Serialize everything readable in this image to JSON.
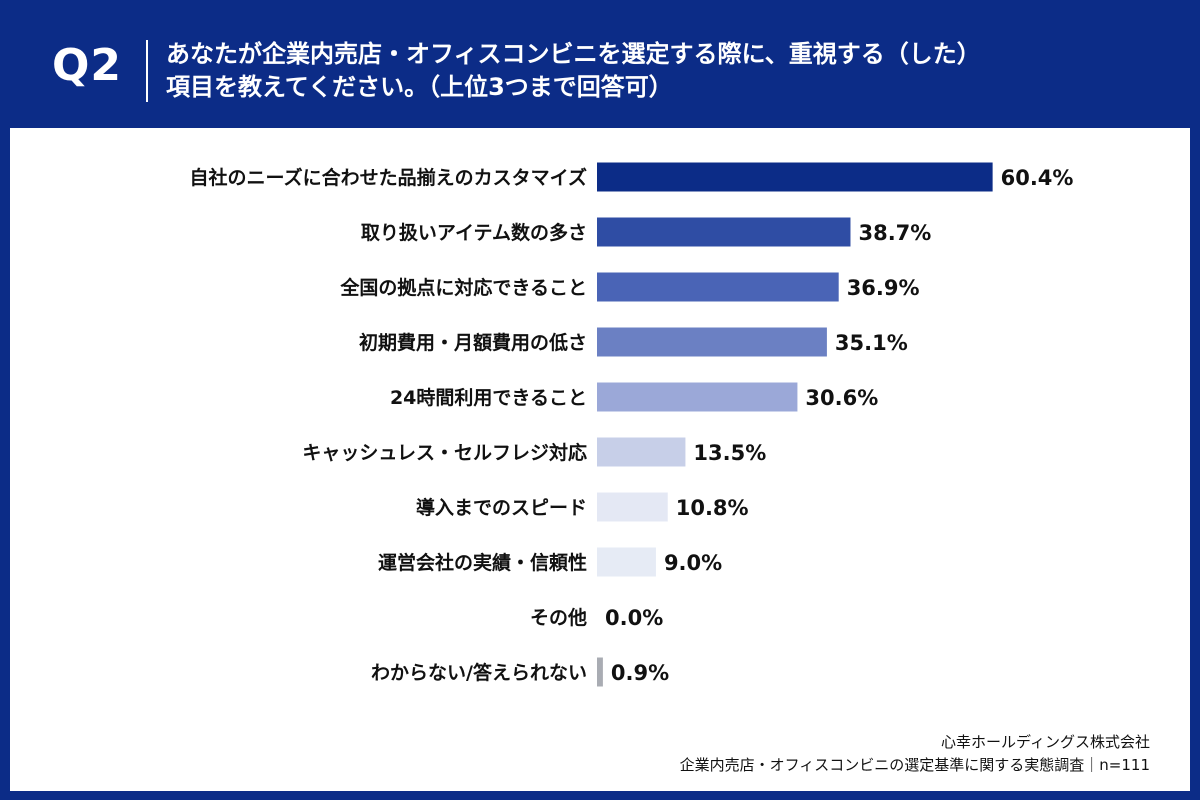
{
  "header": {
    "question_number": "Q2",
    "question_line1": "あなたが企業内売店・オフィスコンビニを選定する際に、重視する（した）",
    "question_line2": "項目を教えてください。（上位3つまで回答可）"
  },
  "chart_data": {
    "type": "bar",
    "orientation": "horizontal",
    "categories": [
      "自社のニーズに合わせた品揃えのカスタマイズ",
      "取り扱いアイテム数の多さ",
      "全国の拠点に対応できること",
      "初期費用・月額費用の低さ",
      "24時間利用できること",
      "キャッシュレス・セルフレジ対応",
      "導入までのスピード",
      "運営会社の実績・信頼性",
      "その他",
      "わからない/答えられない"
    ],
    "values": [
      60.4,
      38.7,
      36.9,
      35.1,
      30.6,
      13.5,
      10.8,
      9.0,
      0.0,
      0.9
    ],
    "value_labels": [
      "60.4%",
      "38.7%",
      "36.9%",
      "35.1%",
      "30.6%",
      "13.5%",
      "10.8%",
      "9.0%",
      "0.0%",
      "0.9%"
    ],
    "unit": "%",
    "xlim": [
      0,
      100
    ],
    "grid": false,
    "colors": [
      "#0c2c87",
      "#2f4da4",
      "#4a64b6",
      "#6b80c3",
      "#9ba8d8",
      "#c7cfe8",
      "#e4e8f4",
      "#e6ebf5",
      "#e6ebf5",
      "#a9acb3"
    ]
  },
  "footer": {
    "company": "心幸ホールディングス株式会社",
    "survey": "企業内売店・オフィスコンビニの選定基準に関する実態調査｜n=111"
  },
  "colors": {
    "frame": "#0c2c87",
    "panel": "#ffffff",
    "text": "#111111"
  }
}
